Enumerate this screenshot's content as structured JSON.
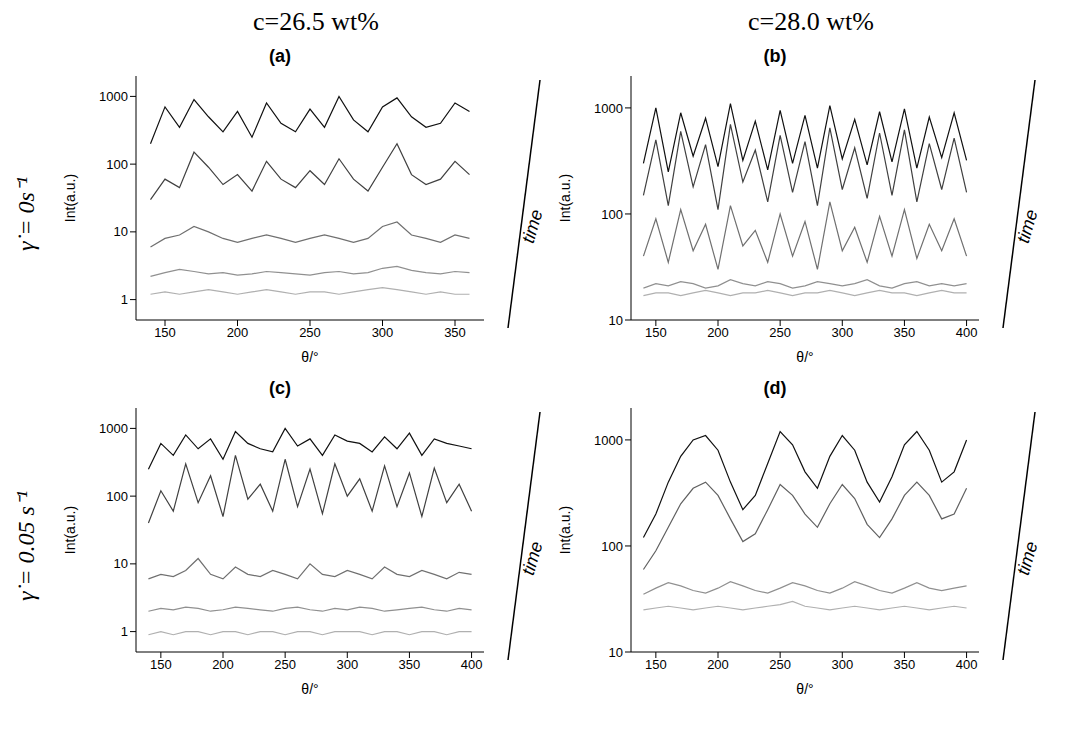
{
  "columns": [
    "c=26.5 wt%",
    "c=28.0 wt%"
  ],
  "rows": [
    "γ̇ = 0s⁻¹",
    "γ̇ = 0.05 s⁻¹"
  ],
  "chart_data": [
    {
      "type": "line",
      "title": "(a)",
      "x_label": "θ/°",
      "y_label": "Int(a.u.)",
      "annotation": "time",
      "log": "y",
      "grid": false,
      "xlim": [
        130,
        370
      ],
      "xticks": [
        150,
        200,
        250,
        300,
        350
      ],
      "ylim": [
        0.5,
        2000
      ],
      "yticks": [
        1,
        10,
        100,
        1000
      ],
      "x": [
        140,
        150,
        160,
        170,
        180,
        190,
        200,
        210,
        220,
        230,
        240,
        250,
        260,
        270,
        280,
        290,
        300,
        310,
        320,
        330,
        340,
        350,
        360
      ],
      "series": [
        {
          "color": "#b0b0b0",
          "values": [
            1.2,
            1.3,
            1.2,
            1.3,
            1.4,
            1.3,
            1.2,
            1.3,
            1.4,
            1.3,
            1.2,
            1.3,
            1.3,
            1.2,
            1.3,
            1.4,
            1.5,
            1.4,
            1.3,
            1.2,
            1.3,
            1.2,
            1.2
          ]
        },
        {
          "color": "#909090",
          "values": [
            2.2,
            2.5,
            2.8,
            2.6,
            2.4,
            2.5,
            2.3,
            2.4,
            2.6,
            2.5,
            2.4,
            2.3,
            2.5,
            2.6,
            2.4,
            2.5,
            2.9,
            3.1,
            2.7,
            2.5,
            2.4,
            2.6,
            2.5
          ]
        },
        {
          "color": "#707070",
          "values": [
            6,
            8,
            9,
            12,
            10,
            8,
            7,
            8,
            9,
            8,
            7,
            8,
            9,
            8,
            7,
            8,
            12,
            14,
            9,
            8,
            7,
            9,
            8
          ]
        },
        {
          "color": "#404040",
          "values": [
            30,
            60,
            45,
            150,
            90,
            50,
            70,
            40,
            110,
            60,
            45,
            80,
            50,
            120,
            60,
            40,
            90,
            200,
            70,
            50,
            60,
            110,
            70
          ]
        },
        {
          "color": "#101010",
          "values": [
            200,
            700,
            350,
            900,
            500,
            300,
            600,
            250,
            800,
            400,
            300,
            650,
            350,
            1000,
            450,
            300,
            700,
            950,
            500,
            350,
            400,
            800,
            600
          ]
        }
      ]
    },
    {
      "type": "line",
      "title": "(b)",
      "x_label": "θ/°",
      "y_label": "Int(a.u.)",
      "annotation": "time",
      "log": "y",
      "grid": false,
      "xlim": [
        130,
        410
      ],
      "xticks": [
        150,
        200,
        250,
        300,
        350,
        400
      ],
      "ylim": [
        10,
        2000
      ],
      "yticks": [
        10,
        100,
        1000
      ],
      "x": [
        140,
        150,
        160,
        170,
        180,
        190,
        200,
        210,
        220,
        230,
        240,
        250,
        260,
        270,
        280,
        290,
        300,
        310,
        320,
        330,
        340,
        350,
        360,
        370,
        380,
        390,
        400
      ],
      "series": [
        {
          "color": "#b0b0b0",
          "values": [
            17,
            18,
            18,
            17,
            18,
            19,
            18,
            17,
            18,
            18,
            19,
            18,
            17,
            18,
            18,
            19,
            18,
            17,
            18,
            19,
            18,
            18,
            17,
            18,
            19,
            18,
            18
          ]
        },
        {
          "color": "#909090",
          "values": [
            20,
            22,
            21,
            23,
            22,
            20,
            21,
            24,
            22,
            21,
            23,
            22,
            20,
            21,
            23,
            22,
            21,
            22,
            24,
            21,
            20,
            22,
            23,
            21,
            22,
            21,
            22
          ]
        },
        {
          "color": "#707070",
          "values": [
            40,
            90,
            35,
            110,
            45,
            80,
            30,
            120,
            50,
            70,
            35,
            100,
            40,
            85,
            30,
            130,
            45,
            75,
            35,
            95,
            40,
            110,
            38,
            80,
            45,
            90,
            40
          ]
        },
        {
          "color": "#404040",
          "values": [
            150,
            500,
            120,
            600,
            180,
            450,
            110,
            700,
            200,
            400,
            130,
            550,
            160,
            480,
            120,
            650,
            170,
            420,
            140,
            580,
            150,
            620,
            130,
            460,
            170,
            520,
            160
          ]
        },
        {
          "color": "#101010",
          "values": [
            300,
            1000,
            250,
            900,
            350,
            800,
            280,
            1100,
            320,
            750,
            260,
            950,
            300,
            850,
            270,
            1050,
            330,
            780,
            290,
            920,
            310,
            980,
            270,
            820,
            340,
            900,
            320
          ]
        }
      ]
    },
    {
      "type": "line",
      "title": "(c)",
      "x_label": "θ/°",
      "y_label": "Int(a.u.)",
      "annotation": "time",
      "log": "y",
      "grid": false,
      "xlim": [
        130,
        410
      ],
      "xticks": [
        150,
        200,
        250,
        300,
        350,
        400
      ],
      "ylim": [
        0.5,
        2000
      ],
      "yticks": [
        1,
        10,
        100,
        1000
      ],
      "x": [
        140,
        150,
        160,
        170,
        180,
        190,
        200,
        210,
        220,
        230,
        240,
        250,
        260,
        270,
        280,
        290,
        300,
        310,
        320,
        330,
        340,
        350,
        360,
        370,
        380,
        390,
        400
      ],
      "series": [
        {
          "color": "#b0b0b0",
          "values": [
            0.9,
            1,
            0.9,
            1,
            1,
            0.9,
            1,
            1,
            0.9,
            1,
            1,
            0.9,
            1,
            1,
            0.9,
            1,
            1,
            1,
            0.9,
            1,
            1,
            0.9,
            1,
            1,
            0.9,
            1,
            1
          ]
        },
        {
          "color": "#909090",
          "values": [
            2,
            2.2,
            2.1,
            2.3,
            2.2,
            2,
            2.1,
            2.3,
            2.2,
            2.1,
            2,
            2.2,
            2.3,
            2.1,
            2,
            2.2,
            2.1,
            2.3,
            2.2,
            2,
            2.1,
            2.2,
            2.3,
            2.1,
            2,
            2.2,
            2.1
          ]
        },
        {
          "color": "#707070",
          "values": [
            6,
            7,
            6.5,
            8,
            12,
            7,
            6,
            9,
            7,
            6.5,
            8,
            7,
            6,
            10,
            7,
            6.5,
            8,
            7,
            6,
            9,
            7,
            6.5,
            8,
            7,
            6,
            7.5,
            7
          ]
        },
        {
          "color": "#404040",
          "values": [
            40,
            120,
            60,
            300,
            80,
            200,
            50,
            400,
            90,
            150,
            60,
            350,
            70,
            250,
            55,
            300,
            100,
            180,
            60,
            280,
            70,
            220,
            50,
            260,
            80,
            150,
            60
          ]
        },
        {
          "color": "#101010",
          "values": [
            250,
            600,
            400,
            800,
            500,
            700,
            350,
            900,
            600,
            500,
            450,
            1000,
            550,
            700,
            400,
            800,
            650,
            600,
            450,
            750,
            500,
            850,
            400,
            700,
            600,
            550,
            500
          ]
        }
      ]
    },
    {
      "type": "line",
      "title": "(d)",
      "x_label": "θ/°",
      "y_label": "Int(a.u.)",
      "annotation": "time",
      "log": "y",
      "grid": false,
      "xlim": [
        130,
        410
      ],
      "xticks": [
        150,
        200,
        250,
        300,
        350,
        400
      ],
      "ylim": [
        10,
        2000
      ],
      "yticks": [
        10,
        100,
        1000
      ],
      "x": [
        140,
        150,
        160,
        170,
        180,
        190,
        200,
        210,
        220,
        230,
        240,
        250,
        260,
        270,
        280,
        290,
        300,
        310,
        320,
        330,
        340,
        350,
        360,
        370,
        380,
        390,
        400
      ],
      "series": [
        {
          "color": "#b0b0b0",
          "values": [
            25,
            26,
            27,
            26,
            25,
            26,
            27,
            26,
            25,
            26,
            27,
            28,
            30,
            27,
            26,
            25,
            26,
            27,
            26,
            25,
            26,
            27,
            26,
            25,
            26,
            27,
            26
          ]
        },
        {
          "color": "#909090",
          "values": [
            35,
            40,
            45,
            42,
            38,
            36,
            40,
            46,
            42,
            38,
            36,
            40,
            45,
            42,
            38,
            36,
            40,
            46,
            42,
            38,
            36,
            40,
            45,
            40,
            38,
            40,
            42
          ]
        },
        {
          "color": "#606060",
          "values": [
            60,
            90,
            150,
            250,
            350,
            400,
            300,
            180,
            110,
            130,
            220,
            380,
            300,
            200,
            150,
            250,
            380,
            280,
            160,
            120,
            180,
            300,
            400,
            300,
            180,
            200,
            350
          ]
        },
        {
          "color": "#101010",
          "values": [
            120,
            200,
            400,
            700,
            1000,
            1100,
            800,
            400,
            220,
            300,
            600,
            1200,
            900,
            500,
            350,
            700,
            1100,
            800,
            400,
            260,
            450,
            900,
            1200,
            800,
            400,
            500,
            1000
          ]
        }
      ]
    }
  ]
}
